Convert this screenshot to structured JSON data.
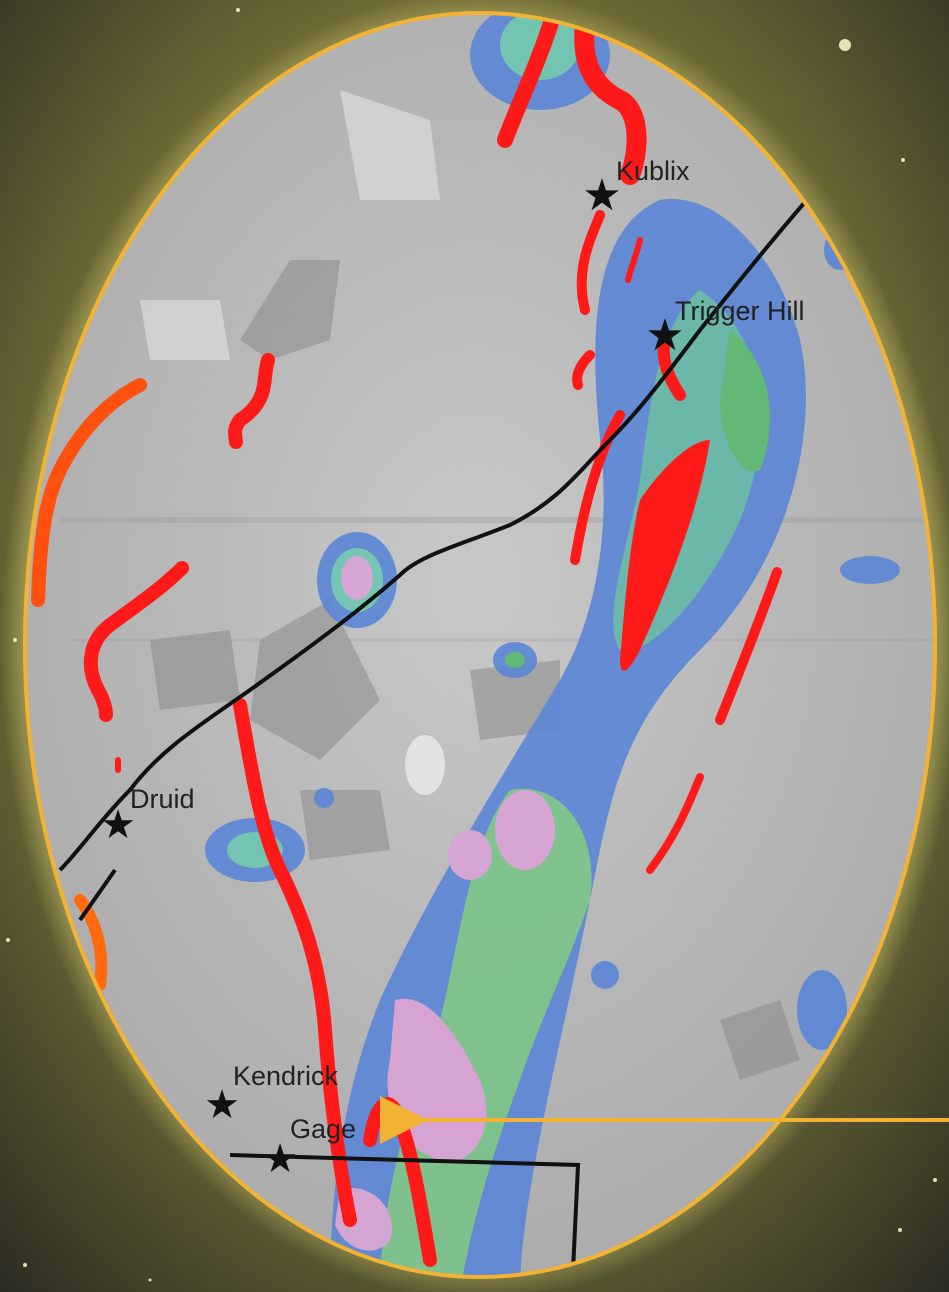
{
  "map": {
    "places": [
      {
        "id": "kublix",
        "name": "Kublix"
      },
      {
        "id": "trigger-hill",
        "name": "Trigger Hill"
      },
      {
        "id": "druid",
        "name": "Druid"
      },
      {
        "id": "kendrick",
        "name": "Kendrick"
      },
      {
        "id": "gage",
        "name": "Gage"
      }
    ]
  },
  "colors": {
    "frame": "#f2b233",
    "halo": "#e8e07a",
    "fault": "#ff1a1a",
    "road": "#111111",
    "low": "#5b86d6",
    "mid": "#5fc79a",
    "high": "#d9a3d6",
    "base": "#bdbdbd"
  }
}
